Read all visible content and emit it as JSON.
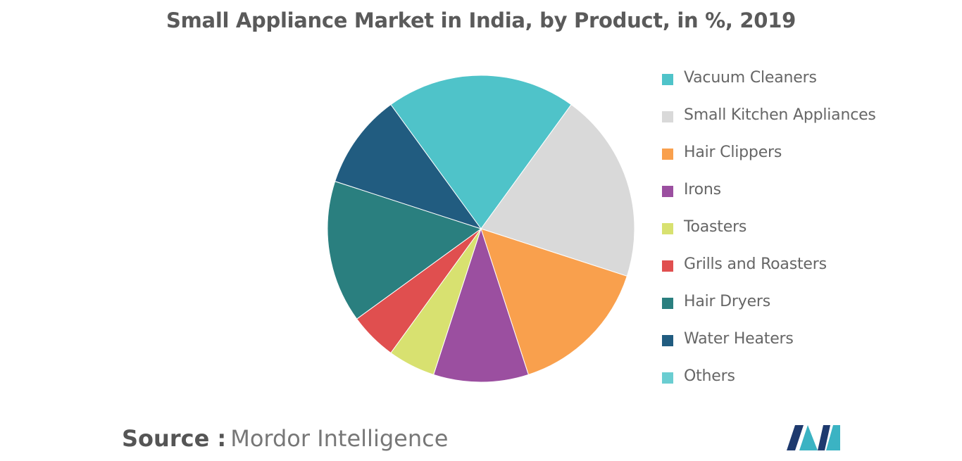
{
  "chart_data": {
    "type": "pie",
    "title": "Small Appliance Market in India, by Product, in %, 2019",
    "start_angle_deg": -36,
    "direction": "clockwise",
    "legend_position": "right",
    "slices": [
      {
        "label": "Vacuum Cleaners",
        "value": 20,
        "color": "#4fc3c9"
      },
      {
        "label": "Small Kitchen Appliances",
        "value": 20,
        "color": "#d9d9d9"
      },
      {
        "label": "Hair Clippers",
        "value": 15,
        "color": "#f9a04d"
      },
      {
        "label": "Irons",
        "value": 10,
        "color": "#9b4fa0"
      },
      {
        "label": "Toasters",
        "value": 5,
        "color": "#d8e170"
      },
      {
        "label": "Grills and Roasters",
        "value": 5,
        "color": "#e04f4f"
      },
      {
        "label": "Hair Dryers",
        "value": 15,
        "color": "#2a7f7f"
      },
      {
        "label": "Water Heaters",
        "value": 10,
        "color": "#215c80"
      },
      {
        "label": "Others",
        "value": 0,
        "color": "#6acdd1"
      }
    ]
  },
  "source": {
    "label": "Source :",
    "text": "Mordor Intelligence"
  },
  "logo": {
    "icon": "mordor-intelligence-logo-icon",
    "colors": [
      "#1e3a6e",
      "#3bb3c3"
    ]
  }
}
